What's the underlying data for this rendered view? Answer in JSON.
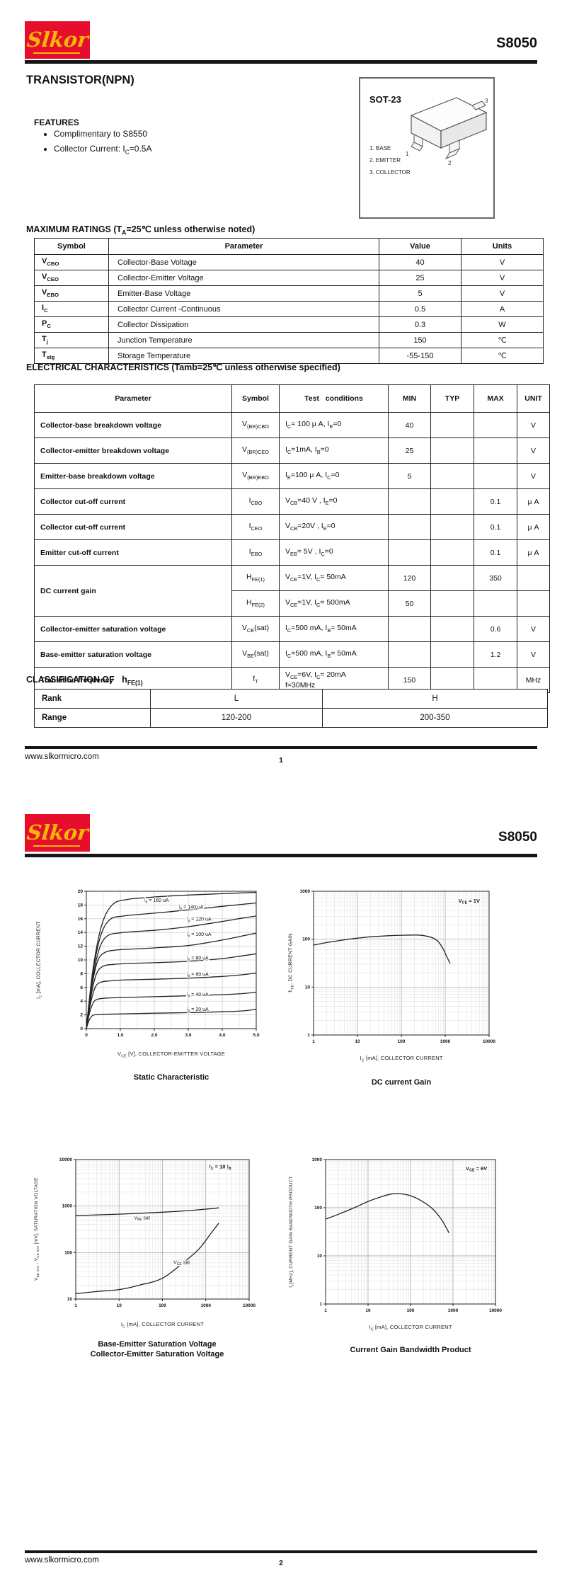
{
  "page1": {
    "brand": "Slkor",
    "part": "S8050",
    "title": "TRANSISTOR(NPN)",
    "features_heading": "FEATURES",
    "features": [
      "Complimentary to S8550",
      "Collector Current: I~C~=0.5A"
    ],
    "package": {
      "name": "SOT-23",
      "pins": [
        "1. BASE",
        "2. EMITTER",
        "3. COLLECTOR"
      ],
      "pin_numbers": [
        "1",
        "2",
        "3"
      ]
    },
    "max_ratings": {
      "heading": "MAXIMUM RATINGS (T~A~=25℃ unless otherwise noted)",
      "headers": [
        "Symbol",
        "Parameter",
        "Value",
        "Units"
      ],
      "rows": [
        [
          "V~CBO~",
          "Collector-Base Voltage",
          "40",
          "V"
        ],
        [
          "V~CEO~",
          "Collector-Emitter Voltage",
          "25",
          "V"
        ],
        [
          "V~EBO~",
          "Emitter-Base Voltage",
          "5",
          "V"
        ],
        [
          "I~C~",
          "Collector Current -Continuous",
          "0.5",
          "A"
        ],
        [
          "P~C~",
          "Collector Dissipation",
          "0.3",
          "W"
        ],
        [
          "T~j~",
          "Junction Temperature",
          "150",
          "℃"
        ],
        [
          "T~stg~",
          "Storage Temperature",
          "-55-150",
          "℃"
        ]
      ]
    },
    "elec": {
      "heading": "ELECTRICAL CHARACTERISTICS (Tamb=25℃ unless otherwise specified)",
      "headers": [
        "Parameter",
        "Symbol",
        "Test   conditions",
        "MIN",
        "TYP",
        "MAX",
        "UNIT"
      ],
      "rows": [
        [
          "Collector-base breakdown voltage",
          "V~(BR)CBO~",
          "I~C~= 100 μ A, I~E~=0",
          "40",
          "",
          "",
          "V"
        ],
        [
          "Collector-emitter breakdown voltage",
          "V~(BR)CEO~",
          "I~C~=1mA, I~B~=0",
          "25",
          "",
          "",
          "V"
        ],
        [
          "Emitter-base breakdown voltage",
          "V~(BR)EBO~",
          "I~E~=100 μ A, I~C~=0",
          "5",
          "",
          "",
          "V"
        ],
        [
          "Collector cut-off current",
          "I~CBO~",
          "V~CB~=40 V ,  I~E~=0",
          "",
          "",
          "0.1",
          "μ A"
        ],
        [
          "Collector cut-off current",
          "I~CEO~",
          "V~CB~=20V ,  I~E~=0",
          "",
          "",
          "0.1",
          "μ A"
        ],
        [
          "Emitter cut-off current",
          "I~EBO~",
          "V~EB~= 5V ,   I~C~=0",
          "",
          "",
          "0.1",
          "μ A"
        ],
        [
          {
            "t": "DC current gain",
            "rs": 2
          },
          "H~FE(1)~",
          "V~CE~=1V,   I~C~= 50mA",
          "120",
          "",
          "350",
          ""
        ],
        [
          "H~FE(2)~",
          "V~CE~=1V,   I~C~= 500mA",
          "50",
          "",
          "",
          ""
        ],
        [
          "Collector-emitter saturation voltage",
          "V~CE~(sat)",
          "I~C~=500 mA, I~B~= 50mA",
          "",
          "",
          "0.6",
          "V"
        ],
        [
          "Base-emitter saturation voltage",
          "V~BE~(sat)",
          "I~C~=500 mA, I~B~= 50mA",
          "",
          "",
          "1.2",
          "V"
        ],
        [
          "Transition frequency",
          "f~T~",
          "V~CE~=6V,   I~C~= 20mA\nf=30MHz",
          "150",
          "",
          "",
          "MHz"
        ]
      ]
    },
    "classification": {
      "heading": "CLASSIFICATION OF   h~FE(1)~",
      "rows": [
        [
          "Rank",
          "L",
          "H"
        ],
        [
          "Range",
          "120-200",
          "200-350"
        ]
      ]
    },
    "footer": {
      "url": "www.slkormicro.com",
      "page": "1"
    }
  },
  "page2": {
    "brand": "Slkor",
    "part": "S8050",
    "footer": {
      "url": "www.slkormicro.com",
      "page": "2"
    }
  },
  "chart_data": [
    {
      "id": "static-characteristic",
      "type": "line",
      "title": "Static Characteristic",
      "xlabel": "V~CE~ [V], COLLECTOR-EMITTER VOLTAGE",
      "ylabel": "I~C~ [mA], COLLECTOR CURRENT",
      "xscale": "linear",
      "xlim": [
        0,
        5
      ],
      "xticks": [
        0,
        1,
        2,
        3,
        4,
        5
      ],
      "xtick_labels": [
        "0",
        "1.0",
        "2.0",
        "3.0",
        "4.0",
        "5.0"
      ],
      "yscale": "linear",
      "ylim": [
        0,
        20
      ],
      "yticks": [
        0,
        2,
        4,
        6,
        8,
        10,
        12,
        14,
        16,
        18,
        20
      ],
      "ytick_labels": [
        "0",
        "2",
        "4",
        "6",
        "8",
        "10",
        "12",
        "14",
        "16",
        "18",
        "20"
      ],
      "series": [
        {
          "name": "Ib = 20 uA",
          "points": [
            [
              0,
              0
            ],
            [
              0.08,
              1.2
            ],
            [
              0.18,
              1.9
            ],
            [
              0.3,
              2.02
            ],
            [
              0.6,
              2.1
            ],
            [
              1.2,
              2.17
            ],
            [
              2,
              2.25
            ],
            [
              3,
              2.33
            ],
            [
              4,
              2.45
            ],
            [
              4.6,
              2.58
            ],
            [
              5,
              2.8
            ]
          ]
        },
        {
          "name": "Ib = 40 uA",
          "points": [
            [
              0,
              0
            ],
            [
              0.1,
              2.4
            ],
            [
              0.22,
              3.9
            ],
            [
              0.35,
              4.3
            ],
            [
              0.6,
              4.45
            ],
            [
              1.2,
              4.55
            ],
            [
              2,
              4.65
            ],
            [
              3,
              4.78
            ],
            [
              4,
              4.95
            ],
            [
              4.6,
              5.1
            ],
            [
              5,
              5.3
            ]
          ]
        },
        {
          "name": "Ib = 60 uA",
          "points": [
            [
              0,
              0
            ],
            [
              0.12,
              3.6
            ],
            [
              0.26,
              6.0
            ],
            [
              0.42,
              6.75
            ],
            [
              0.7,
              6.95
            ],
            [
              1.2,
              7.1
            ],
            [
              2,
              7.2
            ],
            [
              3,
              7.35
            ],
            [
              4,
              7.6
            ],
            [
              4.6,
              7.85
            ],
            [
              5,
              8.1
            ]
          ]
        },
        {
          "name": "Ib = 80 uA",
          "points": [
            [
              0,
              0
            ],
            [
              0.14,
              4.8
            ],
            [
              0.3,
              8.0
            ],
            [
              0.5,
              9.1
            ],
            [
              0.8,
              9.35
            ],
            [
              1.3,
              9.5
            ],
            [
              2,
              9.6
            ],
            [
              3,
              9.8
            ],
            [
              4,
              10.2
            ],
            [
              4.6,
              10.6
            ],
            [
              5,
              10.9
            ]
          ]
        },
        {
          "name": "Ib = 100 uA",
          "points": [
            [
              0,
              0
            ],
            [
              0.15,
              5.8
            ],
            [
              0.33,
              9.8
            ],
            [
              0.55,
              11.1
            ],
            [
              0.9,
              11.45
            ],
            [
              1.4,
              11.6
            ],
            [
              2,
              11.75
            ],
            [
              3,
              12.1
            ],
            [
              4,
              12.9
            ],
            [
              4.6,
              13.5
            ],
            [
              5,
              13.9
            ]
          ]
        },
        {
          "name": "Ib = 120 uA",
          "points": [
            [
              0,
              0
            ],
            [
              0.17,
              6.8
            ],
            [
              0.38,
              11.6
            ],
            [
              0.62,
              13.5
            ],
            [
              1,
              13.95
            ],
            [
              1.5,
              14.15
            ],
            [
              2.2,
              14.4
            ],
            [
              3,
              14.85
            ],
            [
              4,
              15.6
            ],
            [
              4.6,
              16.1
            ],
            [
              5,
              16.4
            ]
          ]
        },
        {
          "name": "Ib = 140 uA",
          "points": [
            [
              0,
              0
            ],
            [
              0.18,
              7.8
            ],
            [
              0.42,
              13.5
            ],
            [
              0.7,
              15.9
            ],
            [
              1.1,
              16.4
            ],
            [
              1.6,
              16.65
            ],
            [
              2.3,
              16.95
            ],
            [
              3,
              17.3
            ],
            [
              4,
              17.8
            ],
            [
              4.6,
              18.1
            ],
            [
              5,
              18.3
            ]
          ]
        },
        {
          "name": "Ib = 160 uA",
          "points": [
            [
              0,
              0
            ],
            [
              0.2,
              8.8
            ],
            [
              0.46,
              15.2
            ],
            [
              0.78,
              18.1
            ],
            [
              1.2,
              18.8
            ],
            [
              1.7,
              19.05
            ],
            [
              2.4,
              19.3
            ],
            [
              3,
              19.45
            ],
            [
              4,
              19.65
            ],
            [
              5,
              19.85
            ]
          ]
        }
      ],
      "labels": [
        {
          "text": "I~b~ = 160 uA",
          "x": 1.7,
          "y": 18.45
        },
        {
          "text": "I~b~ = 140 uA",
          "x": 2.72,
          "y": 17.5
        },
        {
          "text": "I~b~ = 120 uA",
          "x": 2.95,
          "y": 15.7
        },
        {
          "text": "I~b~ = 100 uA",
          "x": 2.95,
          "y": 13.5
        },
        {
          "text": "I~b~ = 80 uA",
          "x": 2.95,
          "y": 10.05
        },
        {
          "text": "I~b~ = 60 uA",
          "x": 2.95,
          "y": 7.7
        },
        {
          "text": "I~b~ = 40 uA",
          "x": 2.95,
          "y": 4.75
        },
        {
          "text": "I~b~ = 20 uA",
          "x": 2.95,
          "y": 2.6
        }
      ],
      "annotations": []
    },
    {
      "id": "dc-current-gain",
      "type": "line",
      "title": "DC current Gain",
      "xlabel": "I~C~ [mA], COLLECTOR CURRENT",
      "ylabel": "h~FE~, DC CURRENT GAIN",
      "xscale": "log",
      "xlim": [
        1,
        10000
      ],
      "xticks": [
        1,
        10,
        100,
        1000,
        10000
      ],
      "xtick_labels": [
        "1",
        "10",
        "100",
        "1000",
        "10000"
      ],
      "yscale": "log",
      "ylim": [
        1,
        1000
      ],
      "yticks": [
        1,
        10,
        100,
        1000
      ],
      "ytick_labels": [
        "1",
        "10",
        "100",
        "1000"
      ],
      "series": [
        {
          "name": "hFE",
          "points": [
            [
              1,
              75
            ],
            [
              2,
              85
            ],
            [
              5,
              97
            ],
            [
              10,
              105
            ],
            [
              20,
              112
            ],
            [
              50,
              118
            ],
            [
              100,
              121
            ],
            [
              200,
              122
            ],
            [
              300,
              120
            ],
            [
              500,
              108
            ],
            [
              700,
              88
            ],
            [
              900,
              62
            ],
            [
              1100,
              42
            ],
            [
              1300,
              31
            ]
          ]
        }
      ],
      "labels": [],
      "annotations": [
        {
          "text": "V~CE~ = 1V",
          "x": 2000,
          "y": 580
        }
      ]
    },
    {
      "id": "saturation-voltage",
      "type": "line",
      "title": "Base-Emitter Saturation Voltage\nCollector-Emitter Saturation Voltage",
      "xlabel": "I~C~ [mA], COLLECTOR CURRENT",
      "ylabel": "V~BE SAT~ , V~CE SAT~   [mV], SATURATION VOLTAGE",
      "xscale": "log",
      "xlim": [
        1,
        10000
      ],
      "xticks": [
        1,
        10,
        100,
        1000,
        10000
      ],
      "xtick_labels": [
        "1",
        "10",
        "100",
        "1000",
        "10000"
      ],
      "yscale": "log",
      "ylim": [
        10,
        10000
      ],
      "yticks": [
        10,
        100,
        1000,
        10000
      ],
      "ytick_labels": [
        "10",
        "100",
        "1000",
        "10000"
      ],
      "series": [
        {
          "name": "VBE sat",
          "points": [
            [
              1,
              620
            ],
            [
              3,
              645
            ],
            [
              10,
              670
            ],
            [
              30,
              700
            ],
            [
              100,
              738
            ],
            [
              300,
              785
            ],
            [
              1000,
              858
            ],
            [
              2000,
              915
            ]
          ]
        },
        {
          "name": "VCE sat",
          "points": [
            [
              1,
              13
            ],
            [
              3,
              14.5
            ],
            [
              10,
              16
            ],
            [
              30,
              20
            ],
            [
              100,
              28
            ],
            [
              300,
              60
            ],
            [
              700,
              120
            ],
            [
              1400,
              280
            ],
            [
              2000,
              430
            ]
          ]
        }
      ],
      "labels": [
        {
          "text": "V~BE~ sat",
          "x": 22,
          "y": 520
        },
        {
          "text": "V~CE~ sat",
          "x": 180,
          "y": 57
        }
      ],
      "annotations": [
        {
          "text": "I~C~ = 10 I~B~",
          "x": 1200,
          "y": 6500
        }
      ]
    },
    {
      "id": "gain-bandwidth-product",
      "type": "line",
      "title": "Current Gain Bandwidth Product",
      "xlabel": "I~C~ [mA], COLLECTOR CURRENT",
      "ylabel": "f~T~[MHz], CURRENT GAIN BANDWIDTH PRODUCT",
      "xscale": "log",
      "xlim": [
        1,
        10000
      ],
      "xticks": [
        1,
        10,
        100,
        1000,
        10000
      ],
      "xtick_labels": [
        "1",
        "10",
        "100",
        "1000",
        "10000"
      ],
      "yscale": "log",
      "ylim": [
        1,
        1000
      ],
      "yticks": [
        1,
        10,
        100,
        1000
      ],
      "ytick_labels": [
        "1",
        "10",
        "100",
        "1000"
      ],
      "series": [
        {
          "name": "fT",
          "points": [
            [
              1,
              58
            ],
            [
              2,
              73
            ],
            [
              5,
              102
            ],
            [
              10,
              135
            ],
            [
              20,
              168
            ],
            [
              35,
              192
            ],
            [
              55,
              196
            ],
            [
              90,
              182
            ],
            [
              150,
              152
            ],
            [
              300,
              102
            ],
            [
              500,
              62
            ],
            [
              700,
              38
            ],
            [
              800,
              30
            ]
          ]
        }
      ],
      "labels": [],
      "annotations": [
        {
          "text": "V~CE~ = 6V",
          "x": 2000,
          "y": 600
        }
      ]
    }
  ]
}
